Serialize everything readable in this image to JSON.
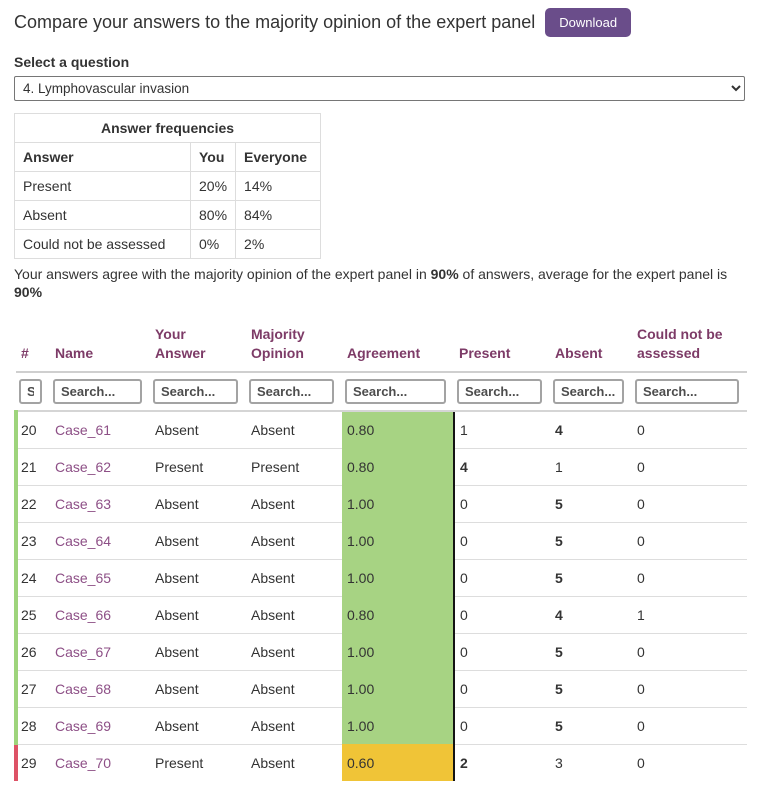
{
  "header": {
    "title": "Compare your answers to the majority opinion of the expert panel",
    "download_label": "Download"
  },
  "question": {
    "label": "Select a question",
    "selected": "4. Lymphovascular invasion"
  },
  "frequencies": {
    "title": "Answer frequencies",
    "columns": {
      "answer": "Answer",
      "you": "You",
      "everyone": "Everyone"
    },
    "rows": [
      {
        "answer": "Present",
        "you": "20%",
        "everyone": "14%"
      },
      {
        "answer": "Absent",
        "you": "80%",
        "everyone": "84%"
      },
      {
        "answer": "Could not be assessed",
        "you": "0%",
        "everyone": "2%"
      }
    ]
  },
  "agreement_summary": {
    "part1": "Your answers agree with the majority opinion of the expert panel in ",
    "your_value": "90%",
    "part2": " of answers, average for the expert panel is ",
    "panel_value": "90%"
  },
  "results_table": {
    "search_placeholder": "Search...",
    "columns": [
      {
        "key": "num",
        "label": "#"
      },
      {
        "key": "name",
        "label": "Name"
      },
      {
        "key": "your_answer",
        "label": "Your Answer"
      },
      {
        "key": "majority_opinion",
        "label": "Majority Opinion"
      },
      {
        "key": "agreement",
        "label": "Agreement"
      },
      {
        "key": "present",
        "label": "Present"
      },
      {
        "key": "absent",
        "label": "Absent"
      },
      {
        "key": "could_not_be_assessed",
        "label": "Could not be assessed"
      }
    ],
    "rows": [
      {
        "num": "20",
        "name": "Case_61",
        "your_answer": "Absent",
        "majority_opinion": "Absent",
        "agreement": "0.80",
        "agreement_level": "green",
        "present": "1",
        "absent": "4",
        "could_not_be_assessed": "0",
        "bold_column": "absent",
        "edge": "green"
      },
      {
        "num": "21",
        "name": "Case_62",
        "your_answer": "Present",
        "majority_opinion": "Present",
        "agreement": "0.80",
        "agreement_level": "green",
        "present": "4",
        "absent": "1",
        "could_not_be_assessed": "0",
        "bold_column": "present",
        "edge": "green"
      },
      {
        "num": "22",
        "name": "Case_63",
        "your_answer": "Absent",
        "majority_opinion": "Absent",
        "agreement": "1.00",
        "agreement_level": "green",
        "present": "0",
        "absent": "5",
        "could_not_be_assessed": "0",
        "bold_column": "absent",
        "edge": "green"
      },
      {
        "num": "23",
        "name": "Case_64",
        "your_answer": "Absent",
        "majority_opinion": "Absent",
        "agreement": "1.00",
        "agreement_level": "green",
        "present": "0",
        "absent": "5",
        "could_not_be_assessed": "0",
        "bold_column": "absent",
        "edge": "green"
      },
      {
        "num": "24",
        "name": "Case_65",
        "your_answer": "Absent",
        "majority_opinion": "Absent",
        "agreement": "1.00",
        "agreement_level": "green",
        "present": "0",
        "absent": "5",
        "could_not_be_assessed": "0",
        "bold_column": "absent",
        "edge": "green"
      },
      {
        "num": "25",
        "name": "Case_66",
        "your_answer": "Absent",
        "majority_opinion": "Absent",
        "agreement": "0.80",
        "agreement_level": "green",
        "present": "0",
        "absent": "4",
        "could_not_be_assessed": "1",
        "bold_column": "absent",
        "edge": "green"
      },
      {
        "num": "26",
        "name": "Case_67",
        "your_answer": "Absent",
        "majority_opinion": "Absent",
        "agreement": "1.00",
        "agreement_level": "green",
        "present": "0",
        "absent": "5",
        "could_not_be_assessed": "0",
        "bold_column": "absent",
        "edge": "green"
      },
      {
        "num": "27",
        "name": "Case_68",
        "your_answer": "Absent",
        "majority_opinion": "Absent",
        "agreement": "1.00",
        "agreement_level": "green",
        "present": "0",
        "absent": "5",
        "could_not_be_assessed": "0",
        "bold_column": "absent",
        "edge": "green"
      },
      {
        "num": "28",
        "name": "Case_69",
        "your_answer": "Absent",
        "majority_opinion": "Absent",
        "agreement": "1.00",
        "agreement_level": "green",
        "present": "0",
        "absent": "5",
        "could_not_be_assessed": "0",
        "bold_column": "absent",
        "edge": "green"
      },
      {
        "num": "29",
        "name": "Case_70",
        "your_answer": "Present",
        "majority_opinion": "Absent",
        "agreement": "0.60",
        "agreement_level": "yellow",
        "present": "2",
        "absent": "3",
        "could_not_be_assessed": "0",
        "bold_column": "present",
        "edge": "red"
      }
    ]
  },
  "colors": {
    "accent_purple": "#6a4d8a",
    "table_header": "#7d3b67",
    "link_purple": "#8d4f86",
    "agreement_green": "#a7d383",
    "agreement_yellow": "#f0c437",
    "edge_green": "#9ed47c",
    "edge_red": "#dd5266"
  }
}
